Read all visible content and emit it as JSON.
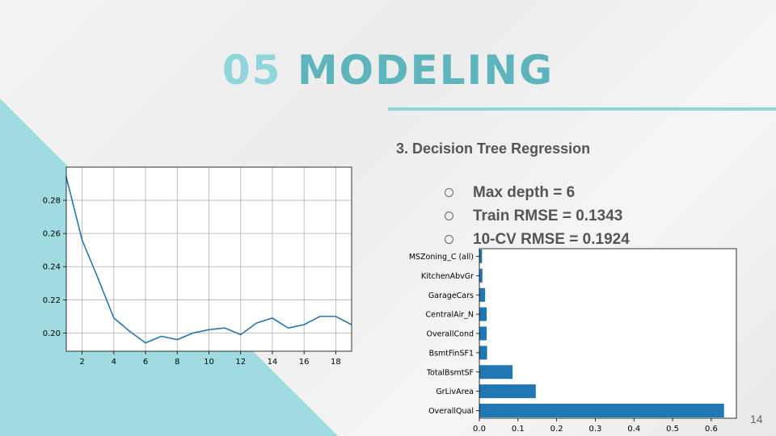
{
  "slide": {
    "title_number": "05",
    "title_text": "MODELING",
    "subtitle": "3. Decision Tree Regression",
    "bullets": [
      "Max depth = 6",
      "Train RMSE = 0.1343",
      "10-CV RMSE = 0.1924"
    ],
    "page_number": "14",
    "colors": {
      "accent_light": "#8fd5dc",
      "accent_dark": "#5eb4bd",
      "triangle": "#9fdbe0",
      "series": "#1f77b4"
    }
  },
  "chart_data": [
    {
      "type": "line",
      "title": "",
      "xlabel": "",
      "ylabel": "",
      "x": [
        1,
        2,
        3,
        4,
        5,
        6,
        7,
        8,
        9,
        10,
        11,
        12,
        13,
        14,
        15,
        16,
        17,
        18,
        19
      ],
      "series": [
        {
          "values": [
            0.294,
            0.256,
            0.233,
            0.209,
            0.201,
            0.194,
            0.198,
            0.196,
            0.2,
            0.202,
            0.203,
            0.199,
            0.206,
            0.209,
            0.203,
            0.205,
            0.21,
            0.21,
            0.205
          ]
        }
      ],
      "xlim": [
        1,
        19
      ],
      "ylim": [
        0.189,
        0.3
      ],
      "xticks": [
        2,
        4,
        6,
        8,
        10,
        12,
        14,
        16,
        18
      ],
      "xtick_labels": [
        "2",
        "4",
        "6",
        "8",
        "10",
        "12",
        "14",
        "16",
        "18"
      ],
      "yticks": [
        0.2,
        0.22,
        0.24,
        0.26,
        0.28
      ],
      "ytick_labels": [
        "0.20",
        "0.22",
        "0.24",
        "0.26",
        "0.28"
      ],
      "grid": true
    },
    {
      "type": "bar",
      "orientation": "horizontal",
      "title": "",
      "xlabel": "",
      "ylabel": "",
      "categories": [
        "MSZoning_C (all)",
        "KitchenAbvGr",
        "GarageCars",
        "CentralAir_N",
        "OverallCond",
        "BsmtFinSF1",
        "TotalBsmtSF",
        "GrLivArea",
        "OverallQual"
      ],
      "values": [
        0.007,
        0.008,
        0.015,
        0.019,
        0.019,
        0.02,
        0.086,
        0.146,
        0.633
      ],
      "xlim": [
        0,
        0.665
      ],
      "xticks": [
        0,
        0.1,
        0.2,
        0.3,
        0.4,
        0.5,
        0.6
      ],
      "xtick_labels": [
        "0.0",
        "0.1",
        "0.2",
        "0.3",
        "0.4",
        "0.5",
        "0.6"
      ],
      "grid": false
    }
  ]
}
